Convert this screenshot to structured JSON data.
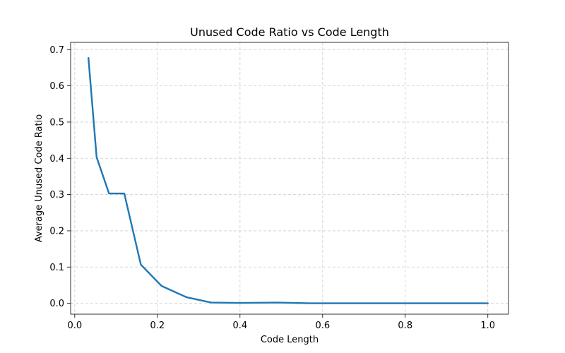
{
  "chart_data": {
    "type": "line",
    "title": "Unused Code Ratio vs Code Length",
    "xlabel": "Code Length",
    "ylabel": "Average Unused Code Ratio",
    "xlim": [
      -0.01,
      1.05
    ],
    "ylim": [
      -0.03,
      0.72
    ],
    "xticks": [
      0.0,
      0.2,
      0.4,
      0.6,
      0.8,
      1.0
    ],
    "xtick_labels": [
      "0.0",
      "0.2",
      "0.4",
      "0.6",
      "0.8",
      "1.0"
    ],
    "yticks": [
      0.0,
      0.1,
      0.2,
      0.3,
      0.4,
      0.5,
      0.6,
      0.7
    ],
    "ytick_labels": [
      "0.0",
      "0.1",
      "0.2",
      "0.3",
      "0.4",
      "0.5",
      "0.6",
      "0.7"
    ],
    "grid": true,
    "color": "#1f77b4",
    "series": [
      {
        "x": [
          0.033,
          0.053,
          0.083,
          0.12,
          0.16,
          0.21,
          0.27,
          0.33,
          0.4,
          0.49,
          0.57,
          0.65,
          0.74,
          0.83,
          0.92,
          1.0
        ],
        "y": [
          0.677,
          0.403,
          0.303,
          0.303,
          0.107,
          0.048,
          0.017,
          0.002,
          0.001,
          0.002,
          0.0,
          0.0,
          0.0,
          0.0,
          0.0,
          0.0
        ]
      }
    ]
  }
}
